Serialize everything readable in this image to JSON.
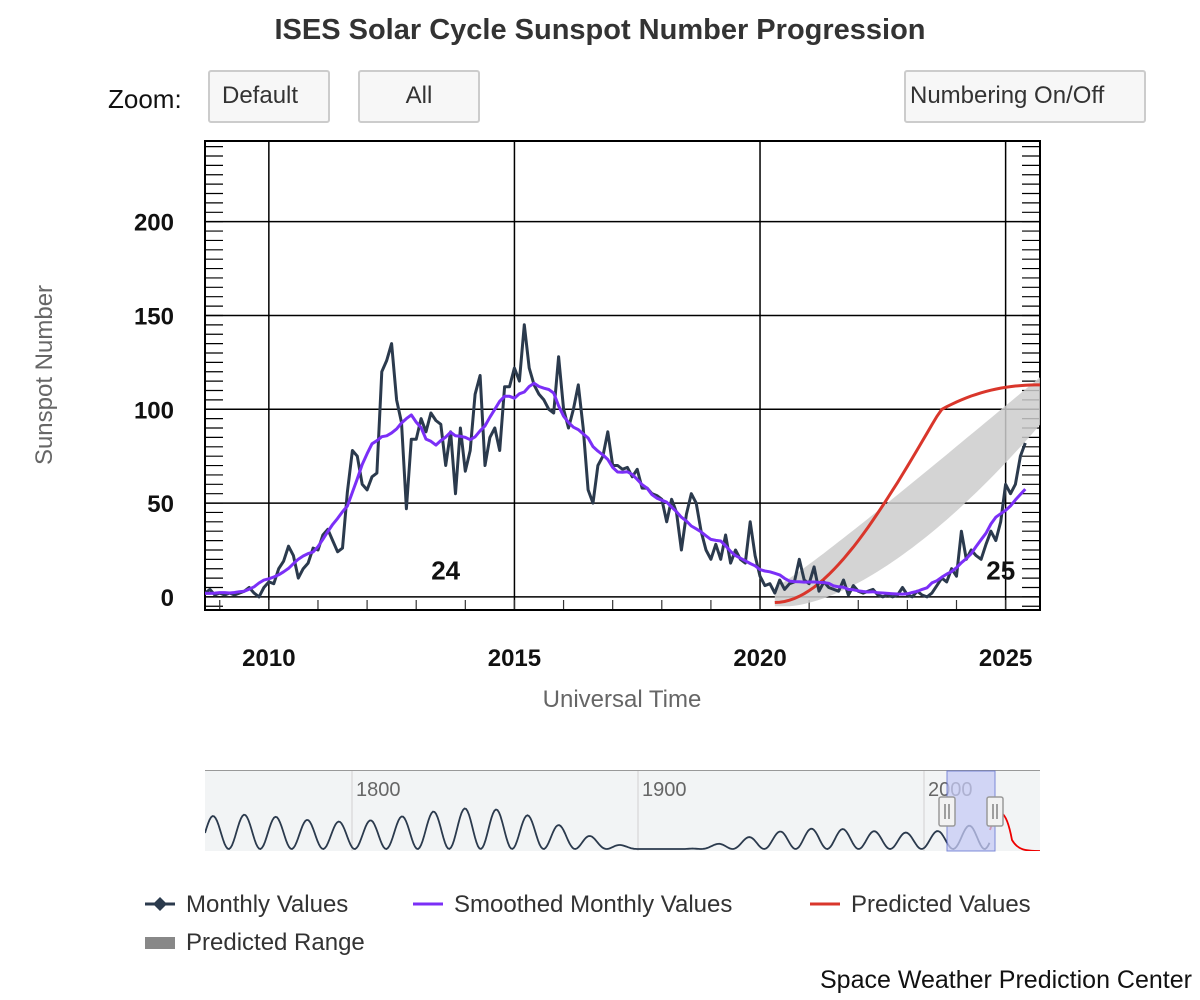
{
  "title": "ISES Solar Cycle Sunspot Number Progression",
  "zoom": {
    "label": "Zoom:",
    "buttons": [
      "Default",
      "All"
    ]
  },
  "numbering_button": "Numbering On/Off",
  "credits": "Space Weather Prediction Center",
  "colors": {
    "monthly": "#2b3a4d",
    "smoothed": "#7b2ff7",
    "predicted": "#d9362b",
    "predicted_range": "#cccccc",
    "navigator_selection": "#c6cbf5",
    "navigator_series": "#2b3a4d",
    "navigator_predicted": "#ee0000"
  },
  "chart_data": {
    "type": "line",
    "title": "ISES Solar Cycle Sunspot Number Progression",
    "xlabel": "Universal Time",
    "ylabel": "Sunspot Number",
    "x_ticks": [
      "2010",
      "2015",
      "2020",
      "2025"
    ],
    "y_ticks": [
      "0",
      "50",
      "100",
      "150",
      "200"
    ],
    "xlim": [
      2008.7,
      2025.7
    ],
    "ylim": [
      -7,
      243
    ],
    "grid": true,
    "cycle_labels": [
      {
        "text": "24",
        "x": 2013.6,
        "y": 14
      },
      {
        "text": "25",
        "x": 2024.9,
        "y": 14
      }
    ],
    "series": [
      {
        "name": "Monthly Values",
        "points": [
          [
            2008.7,
            2
          ],
          [
            2008.8,
            4
          ],
          [
            2008.9,
            1
          ],
          [
            2009.0,
            2
          ],
          [
            2009.1,
            1
          ],
          [
            2009.2,
            2
          ],
          [
            2009.3,
            1
          ],
          [
            2009.4,
            2
          ],
          [
            2009.5,
            3
          ],
          [
            2009.6,
            5
          ],
          [
            2009.7,
            2
          ],
          [
            2009.8,
            0
          ],
          [
            2009.9,
            5
          ],
          [
            2010.0,
            8
          ],
          [
            2010.1,
            7
          ],
          [
            2010.2,
            15
          ],
          [
            2010.3,
            19
          ],
          [
            2010.4,
            27
          ],
          [
            2010.5,
            22
          ],
          [
            2010.6,
            10
          ],
          [
            2010.7,
            15
          ],
          [
            2010.8,
            18
          ],
          [
            2010.9,
            26
          ],
          [
            2011.0,
            25
          ],
          [
            2011.1,
            33
          ],
          [
            2011.2,
            36
          ],
          [
            2011.3,
            30
          ],
          [
            2011.4,
            24
          ],
          [
            2011.5,
            26
          ],
          [
            2011.6,
            56
          ],
          [
            2011.7,
            78
          ],
          [
            2011.8,
            75
          ],
          [
            2011.9,
            60
          ],
          [
            2012.0,
            57
          ],
          [
            2012.1,
            64
          ],
          [
            2012.2,
            66
          ],
          [
            2012.3,
            120
          ],
          [
            2012.4,
            126
          ],
          [
            2012.5,
            135
          ],
          [
            2012.6,
            105
          ],
          [
            2012.7,
            93
          ],
          [
            2012.8,
            47
          ],
          [
            2012.9,
            84
          ],
          [
            2013.0,
            84
          ],
          [
            2013.1,
            95
          ],
          [
            2013.2,
            88
          ],
          [
            2013.3,
            98
          ],
          [
            2013.4,
            94
          ],
          [
            2013.5,
            92
          ],
          [
            2013.6,
            70
          ],
          [
            2013.7,
            88
          ],
          [
            2013.8,
            55
          ],
          [
            2013.9,
            90
          ],
          [
            2014.0,
            67
          ],
          [
            2014.1,
            78
          ],
          [
            2014.2,
            108
          ],
          [
            2014.3,
            118
          ],
          [
            2014.4,
            70
          ],
          [
            2014.5,
            85
          ],
          [
            2014.6,
            90
          ],
          [
            2014.7,
            78
          ],
          [
            2014.8,
            112
          ],
          [
            2014.9,
            112
          ],
          [
            2015.0,
            122
          ],
          [
            2015.1,
            115
          ],
          [
            2015.2,
            145
          ],
          [
            2015.3,
            122
          ],
          [
            2015.4,
            113
          ],
          [
            2015.5,
            108
          ],
          [
            2015.6,
            105
          ],
          [
            2015.7,
            100
          ],
          [
            2015.8,
            98
          ],
          [
            2015.9,
            128
          ],
          [
            2016.0,
            100
          ],
          [
            2016.1,
            90
          ],
          [
            2016.2,
            100
          ],
          [
            2016.3,
            113
          ],
          [
            2016.4,
            90
          ],
          [
            2016.5,
            57
          ],
          [
            2016.6,
            50
          ],
          [
            2016.7,
            70
          ],
          [
            2016.8,
            75
          ],
          [
            2016.9,
            88
          ],
          [
            2017.0,
            70
          ],
          [
            2017.1,
            70
          ],
          [
            2017.2,
            68
          ],
          [
            2017.3,
            69
          ],
          [
            2017.4,
            64
          ],
          [
            2017.5,
            68
          ],
          [
            2017.6,
            58
          ],
          [
            2017.7,
            58
          ],
          [
            2017.8,
            55
          ],
          [
            2017.9,
            54
          ],
          [
            2018.0,
            52
          ],
          [
            2018.1,
            40
          ],
          [
            2018.2,
            52
          ],
          [
            2018.3,
            45
          ],
          [
            2018.4,
            25
          ],
          [
            2018.5,
            44
          ],
          [
            2018.6,
            55
          ],
          [
            2018.7,
            50
          ],
          [
            2018.8,
            35
          ],
          [
            2018.9,
            25
          ],
          [
            2019.0,
            20
          ],
          [
            2019.1,
            28
          ],
          [
            2019.2,
            20
          ],
          [
            2019.3,
            33
          ],
          [
            2019.4,
            18
          ],
          [
            2019.5,
            25
          ],
          [
            2019.6,
            20
          ],
          [
            2019.7,
            18
          ],
          [
            2019.8,
            40
          ],
          [
            2019.9,
            22
          ],
          [
            2020.0,
            11
          ],
          [
            2020.1,
            6
          ],
          [
            2020.2,
            7
          ],
          [
            2020.3,
            2
          ],
          [
            2020.4,
            9
          ],
          [
            2020.5,
            4
          ],
          [
            2020.6,
            7
          ],
          [
            2020.7,
            8
          ],
          [
            2020.8,
            20
          ],
          [
            2020.9,
            9
          ],
          [
            2021.0,
            7
          ],
          [
            2021.1,
            16
          ],
          [
            2021.2,
            3
          ],
          [
            2021.3,
            8
          ],
          [
            2021.4,
            5
          ],
          [
            2021.5,
            4
          ],
          [
            2021.6,
            3
          ],
          [
            2021.7,
            9
          ],
          [
            2021.8,
            1
          ],
          [
            2021.9,
            6
          ],
          [
            2022.0,
            3
          ],
          [
            2022.1,
            2
          ],
          [
            2022.2,
            3
          ],
          [
            2022.3,
            4
          ],
          [
            2022.4,
            1
          ],
          [
            2022.5,
            0
          ],
          [
            2022.6,
            1
          ],
          [
            2022.7,
            0
          ],
          [
            2022.8,
            1
          ],
          [
            2022.9,
            5
          ],
          [
            2023.0,
            1
          ],
          [
            2023.1,
            0
          ],
          [
            2023.2,
            3
          ],
          [
            2023.3,
            1
          ],
          [
            2023.4,
            0
          ],
          [
            2023.5,
            2
          ],
          [
            2023.6,
            6
          ],
          [
            2023.7,
            10
          ],
          [
            2023.8,
            8
          ],
          [
            2023.9,
            15
          ],
          [
            2024.0,
            11
          ],
          [
            2024.1,
            35
          ],
          [
            2024.2,
            20
          ],
          [
            2024.3,
            25
          ],
          [
            2024.4,
            22
          ],
          [
            2024.5,
            20
          ],
          [
            2024.6,
            28
          ],
          [
            2024.7,
            35
          ],
          [
            2024.8,
            30
          ],
          [
            2024.9,
            40
          ],
          [
            2025.0,
            60
          ],
          [
            2025.1,
            55
          ],
          [
            2025.2,
            60
          ],
          [
            2025.3,
            75
          ],
          [
            2025.4,
            82
          ]
        ]
      },
      {
        "name": "Smoothed Monthly Values",
        "points": []
      },
      {
        "name": "Predicted Values",
        "points": []
      }
    ]
  }
}
